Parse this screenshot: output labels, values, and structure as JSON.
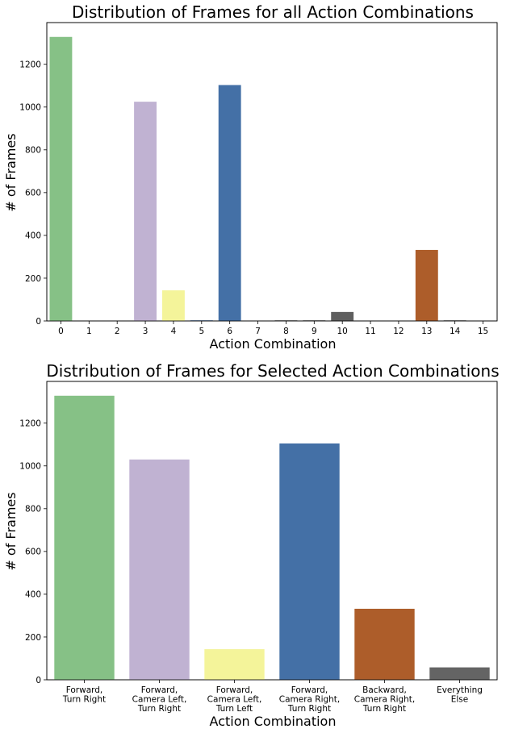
{
  "chart_data": [
    {
      "type": "bar",
      "title": "Distribution of Frames for all Action Combinations",
      "xlabel": "Action Combination",
      "ylabel": "# of Frames",
      "categories": [
        "0",
        "1",
        "2",
        "3",
        "4",
        "5",
        "6",
        "7",
        "8",
        "9",
        "10",
        "11",
        "12",
        "13",
        "14",
        "15"
      ],
      "values": [
        1328,
        0,
        0,
        1025,
        143,
        3,
        1103,
        2,
        3,
        3,
        42,
        2,
        0,
        332,
        3,
        0
      ],
      "colors": [
        "#86c186",
        "#86c186",
        "#86c186",
        "#c0b2d2",
        "#f4f49a",
        "#4a6ea2",
        "#4470a6",
        "#5f5f5f",
        "#5f5f5f",
        "#5f5f5f",
        "#5f5f5f",
        "#5f5f5f",
        "#5f5f5f",
        "#ad5d2a",
        "#5f5f5f",
        "#5f5f5f"
      ],
      "yticks": [
        0,
        200,
        400,
        600,
        800,
        1000,
        1200
      ],
      "ylim": [
        0,
        1395
      ]
    },
    {
      "type": "bar",
      "title": "Distribution of Frames for Selected Action Combinations",
      "xlabel": "Action Combination",
      "ylabel": "# of Frames",
      "categories": [
        [
          "Forward,",
          "Turn Right"
        ],
        [
          "Forward,",
          "Camera Left,",
          "Turn Right"
        ],
        [
          "Forward,",
          "Camera Left,",
          "Turn Left"
        ],
        [
          "Forward,",
          "Camera Right,",
          "Turn Right"
        ],
        [
          "Backward,",
          "Camera Right,",
          "Turn Right"
        ],
        [
          "Everything",
          "Else"
        ]
      ],
      "values": [
        1328,
        1030,
        143,
        1105,
        332,
        58
      ],
      "colors": [
        "#86c186",
        "#c0b2d2",
        "#f4f49a",
        "#4470a6",
        "#ad5d2a",
        "#646464"
      ],
      "yticks": [
        0,
        200,
        400,
        600,
        800,
        1000,
        1200
      ],
      "ylim": [
        0,
        1395
      ]
    }
  ]
}
